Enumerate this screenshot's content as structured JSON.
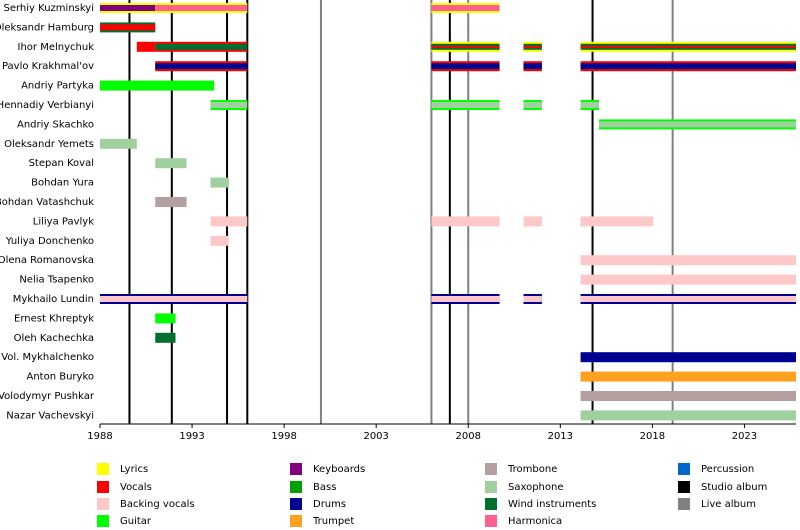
{
  "chart_data": {
    "type": "timeline",
    "xlim": [
      1988,
      2025.8
    ],
    "xticks": [
      1988,
      1993,
      1998,
      2003,
      2008,
      2013,
      2018,
      2023
    ],
    "studio_albums": [
      1989.6,
      1991.9,
      1994.9,
      1996.0,
      2007.0,
      2014.75
    ],
    "live_albums": [
      2000.0,
      2006.0,
      2008.0,
      2019.1
    ],
    "legend": [
      {
        "name": "Lyrics",
        "color": "#ffff00"
      },
      {
        "name": "Vocals",
        "color": "#ff0000"
      },
      {
        "name": "Backing vocals",
        "color": "#ffc8c8"
      },
      {
        "name": "Guitar",
        "color": "#00ff00"
      },
      {
        "name": "Keyboards",
        "color": "#800080"
      },
      {
        "name": "Bass",
        "color": "#00a000"
      },
      {
        "name": "Drums",
        "color": "#000090"
      },
      {
        "name": "Trumpet",
        "color": "#ffa020"
      },
      {
        "name": "Trombone",
        "color": "#b4a0a0"
      },
      {
        "name": "Saxophone",
        "color": "#a0d0a0"
      },
      {
        "name": "Wind instruments",
        "color": "#007030"
      },
      {
        "name": "Harmonica",
        "color": "#ff6090"
      },
      {
        "name": "Percussion",
        "color": "#0066cc"
      },
      {
        "name": "Studio album",
        "color": "#000000"
      },
      {
        "name": "Live album",
        "color": "#808080"
      }
    ],
    "members": [
      {
        "name": "Serhiy Kuzminskyi",
        "bars": [
          {
            "start": 1988,
            "end": 1991,
            "roles": [
              "Lyrics",
              "Keyboards"
            ]
          },
          {
            "start": 1991,
            "end": 1996,
            "roles": [
              "Lyrics",
              "Harmonica"
            ]
          },
          {
            "start": 2006,
            "end": 2009.7,
            "roles": [
              "Lyrics",
              "Harmonica"
            ]
          }
        ]
      },
      {
        "name": "Oleksandr Hamburg",
        "bars": [
          {
            "start": 1988,
            "end": 1991,
            "roles": [
              "Wind instruments",
              "Vocals"
            ]
          }
        ]
      },
      {
        "name": "Ihor Melnychuk",
        "bars": [
          {
            "start": 1990,
            "end": 1991,
            "roles": [
              "Vocals"
            ]
          },
          {
            "start": 1991,
            "end": 1996,
            "roles": [
              "Vocals",
              "Wind instruments"
            ]
          },
          {
            "start": 2006,
            "end": 2009.7,
            "roles": [
              "Lyrics",
              "Wind instruments",
              "Vocals"
            ]
          },
          {
            "start": 2011,
            "end": 2012,
            "roles": [
              "Lyrics",
              "Wind instruments",
              "Vocals"
            ]
          },
          {
            "start": 2014.1,
            "end": 2025.8,
            "roles": [
              "Lyrics",
              "Wind instruments",
              "Vocals"
            ]
          }
        ]
      },
      {
        "name": "Pavlo Krakhmal'ov",
        "bars": [
          {
            "start": 1991,
            "end": 1996,
            "roles": [
              "Vocals",
              "Drums"
            ]
          },
          {
            "start": 2006,
            "end": 2009.7,
            "roles": [
              "Vocals",
              "Drums"
            ]
          },
          {
            "start": 2011,
            "end": 2012,
            "roles": [
              "Vocals",
              "Drums"
            ]
          },
          {
            "start": 2014.1,
            "end": 2025.8,
            "roles": [
              "Vocals",
              "Drums"
            ]
          }
        ]
      },
      {
        "name": "Andriy Partyka",
        "bars": [
          {
            "start": 1988,
            "end": 1994.2,
            "roles": [
              "Guitar"
            ]
          }
        ]
      },
      {
        "name": "Hennadiy Verbianyi",
        "bars": [
          {
            "start": 1994,
            "end": 1996,
            "roles": [
              "Guitar",
              "Saxophone"
            ]
          },
          {
            "start": 2006,
            "end": 2009.7,
            "roles": [
              "Guitar",
              "Saxophone"
            ]
          },
          {
            "start": 2011,
            "end": 2012,
            "roles": [
              "Guitar",
              "Saxophone"
            ]
          },
          {
            "start": 2014.1,
            "end": 2015.1,
            "roles": [
              "Guitar",
              "Saxophone"
            ]
          }
        ]
      },
      {
        "name": "Andriy Skachko",
        "bars": [
          {
            "start": 2015.1,
            "end": 2025.8,
            "roles": [
              "Guitar",
              "Saxophone"
            ]
          }
        ]
      },
      {
        "name": "Oleksandr Yemets",
        "bars": [
          {
            "start": 1988,
            "end": 1990,
            "roles": [
              "Saxophone"
            ]
          }
        ]
      },
      {
        "name": "Stepan Koval",
        "bars": [
          {
            "start": 1991,
            "end": 1992.7,
            "roles": [
              "Saxophone"
            ]
          }
        ]
      },
      {
        "name": "Bohdan Yura",
        "bars": [
          {
            "start": 1994,
            "end": 1995,
            "roles": [
              "Saxophone"
            ]
          }
        ]
      },
      {
        "name": "Bohdan Vatashchuk",
        "bars": [
          {
            "start": 1991,
            "end": 1992.7,
            "roles": [
              "Trombone"
            ]
          }
        ]
      },
      {
        "name": "Liliya Pavlyk",
        "bars": [
          {
            "start": 1994,
            "end": 1996,
            "roles": [
              "Backing vocals"
            ]
          },
          {
            "start": 2006,
            "end": 2009.7,
            "roles": [
              "Backing vocals"
            ]
          },
          {
            "start": 2011,
            "end": 2012,
            "roles": [
              "Backing vocals"
            ]
          },
          {
            "start": 2014.1,
            "end": 2018.05,
            "roles": [
              "Backing vocals"
            ]
          }
        ]
      },
      {
        "name": "Yuliya Donchenko",
        "bars": [
          {
            "start": 1994,
            "end": 1995,
            "roles": [
              "Backing vocals"
            ]
          }
        ]
      },
      {
        "name": "Olena Romanovska",
        "bars": [
          {
            "start": 2014.1,
            "end": 2025.8,
            "roles": [
              "Backing vocals"
            ]
          }
        ]
      },
      {
        "name": "Nelia Tsapenko",
        "bars": [
          {
            "start": 2014.1,
            "end": 2025.8,
            "roles": [
              "Backing vocals"
            ]
          }
        ]
      },
      {
        "name": "Mykhailo Lundin",
        "bars": [
          {
            "start": 1988,
            "end": 1996,
            "roles": [
              "Drums",
              "Backing vocals"
            ]
          },
          {
            "start": 2006,
            "end": 2009.7,
            "roles": [
              "Drums",
              "Backing vocals"
            ]
          },
          {
            "start": 2011,
            "end": 2012,
            "roles": [
              "Drums",
              "Backing vocals"
            ]
          },
          {
            "start": 2014.1,
            "end": 2025.8,
            "roles": [
              "Drums",
              "Backing vocals"
            ]
          }
        ]
      },
      {
        "name": "Ernest Khreptyk",
        "bars": [
          {
            "start": 1991,
            "end": 1992.1,
            "roles": [
              "Guitar"
            ]
          }
        ]
      },
      {
        "name": "Oleh Kachechka",
        "bars": [
          {
            "start": 1991,
            "end": 1992.1,
            "roles": [
              "Wind instruments"
            ]
          }
        ]
      },
      {
        "name": "Vol. Mykhalchenko",
        "bars": [
          {
            "start": 2014.1,
            "end": 2025.8,
            "roles": [
              "Drums"
            ]
          }
        ]
      },
      {
        "name": "Anton Buryko",
        "bars": [
          {
            "start": 2014.1,
            "end": 2025.8,
            "roles": [
              "Trumpet"
            ]
          }
        ]
      },
      {
        "name": "Volodymyr Pushkar",
        "bars": [
          {
            "start": 2014.1,
            "end": 2025.8,
            "roles": [
              "Trombone"
            ]
          }
        ]
      },
      {
        "name": "Nazar Vachevskyi",
        "bars": [
          {
            "start": 2014.1,
            "end": 2025.8,
            "roles": [
              "Saxophone"
            ]
          }
        ]
      }
    ]
  }
}
